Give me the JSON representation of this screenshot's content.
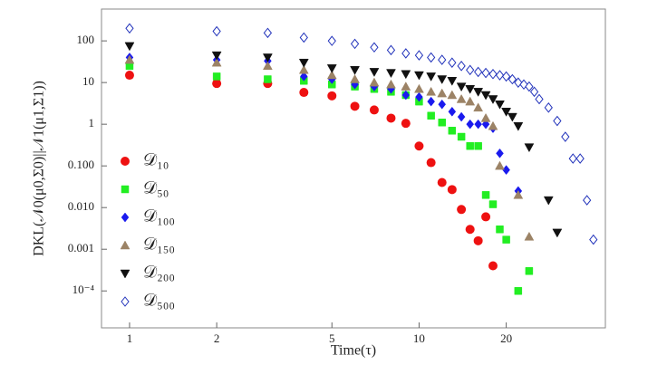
{
  "chart_data": {
    "type": "scatter",
    "xlabel": "Time(τ)",
    "ylabel": "DKL(𝒩0(μ0,Σ0)||𝒩1(μ1,Σ1))",
    "xscale": "log",
    "yscale": "log",
    "xlim": [
      0.8,
      44
    ],
    "ylim": [
      1.3e-05,
      580
    ],
    "xticks": [
      1,
      2,
      5,
      10,
      20
    ],
    "yticks": [
      100,
      10,
      1,
      {
        "value": 0.1,
        "label": "0.100"
      },
      {
        "value": 0.01,
        "label": "0.010"
      },
      0.001,
      {
        "value": 0.0001,
        "label": "10⁻⁴"
      }
    ],
    "legend": "lower left",
    "series": [
      {
        "name": "𝒟₁₀",
        "color": "#ee1111",
        "marker": "circle",
        "x": [
          1,
          2,
          3,
          4,
          5,
          6,
          7,
          8,
          9,
          10,
          11,
          12,
          13,
          14,
          15,
          16,
          17,
          18
        ],
        "values": [
          15,
          9.5,
          9.5,
          5.8,
          4.8,
          2.7,
          2.2,
          1.4,
          1.05,
          0.3,
          0.12,
          0.04,
          0.027,
          0.009,
          0.003,
          0.0016,
          0.006,
          0.0004
        ]
      },
      {
        "name": "𝒟₅₀",
        "color": "#22ee22",
        "marker": "square",
        "x": [
          1,
          2,
          3,
          4,
          5,
          6,
          7,
          8,
          9,
          10,
          11,
          12,
          13,
          14,
          15,
          16,
          17,
          18,
          19,
          20,
          22,
          24
        ],
        "values": [
          25,
          14,
          12,
          11,
          9,
          8,
          7,
          6,
          5,
          3.5,
          1.6,
          1.1,
          0.7,
          0.5,
          0.3,
          0.3,
          0.02,
          0.012,
          0.003,
          0.0017,
          0.0001,
          0.0003
        ]
      },
      {
        "name": "𝒟₁₀₀",
        "color": "#1a1aee",
        "marker": "diamond",
        "x": [
          1,
          2,
          3,
          4,
          5,
          6,
          7,
          8,
          9,
          10,
          11,
          12,
          13,
          14,
          15,
          16,
          17,
          18,
          19,
          20,
          22
        ],
        "values": [
          40,
          35,
          33,
          14,
          12,
          9,
          8,
          7,
          5,
          4.5,
          3.5,
          3,
          2,
          1.5,
          1,
          1,
          1,
          0.8,
          0.2,
          0.08,
          0.025
        ]
      },
      {
        "name": "𝒟₁₅₀",
        "color": "#9c8366",
        "marker": "triangle-up",
        "x": [
          1,
          2,
          3,
          4,
          5,
          6,
          7,
          8,
          9,
          10,
          11,
          12,
          13,
          14,
          15,
          16,
          17,
          18,
          19,
          22,
          24
        ],
        "values": [
          35,
          30,
          25,
          20,
          15,
          12,
          10,
          9,
          8,
          7,
          6,
          5.5,
          5,
          4,
          3.5,
          2.5,
          1.4,
          0.9,
          0.1,
          0.02,
          0.002
        ]
      },
      {
        "name": "𝒟₂₀₀",
        "color": "#111111",
        "marker": "triangle-down",
        "x": [
          1,
          2,
          3,
          4,
          5,
          6,
          7,
          8,
          9,
          10,
          11,
          12,
          13,
          14,
          15,
          16,
          17,
          18,
          19,
          20,
          21,
          22,
          24,
          28,
          30
        ],
        "values": [
          75,
          45,
          40,
          30,
          22,
          20,
          18,
          17,
          16,
          15,
          14,
          12,
          11,
          8,
          7,
          6,
          5,
          4,
          3,
          2,
          1.5,
          0.9,
          0.28,
          0.015,
          0.0025
        ]
      },
      {
        "name": "𝒟₅₀₀",
        "color": "#2233bb",
        "marker": "diamond-open",
        "x": [
          1,
          2,
          3,
          4,
          5,
          6,
          7,
          8,
          9,
          10,
          11,
          12,
          13,
          14,
          15,
          16,
          17,
          18,
          19,
          20,
          21,
          22,
          23,
          24,
          25,
          26,
          28,
          30,
          32,
          34,
          36,
          38,
          40
        ],
        "values": [
          200,
          170,
          155,
          120,
          100,
          85,
          70,
          60,
          50,
          45,
          40,
          35,
          30,
          25,
          20,
          18,
          17,
          16,
          15,
          14,
          12,
          10,
          9,
          8,
          6,
          4,
          2.5,
          1.2,
          0.5,
          0.15,
          0.15,
          0.015,
          0.0017
        ]
      }
    ]
  }
}
